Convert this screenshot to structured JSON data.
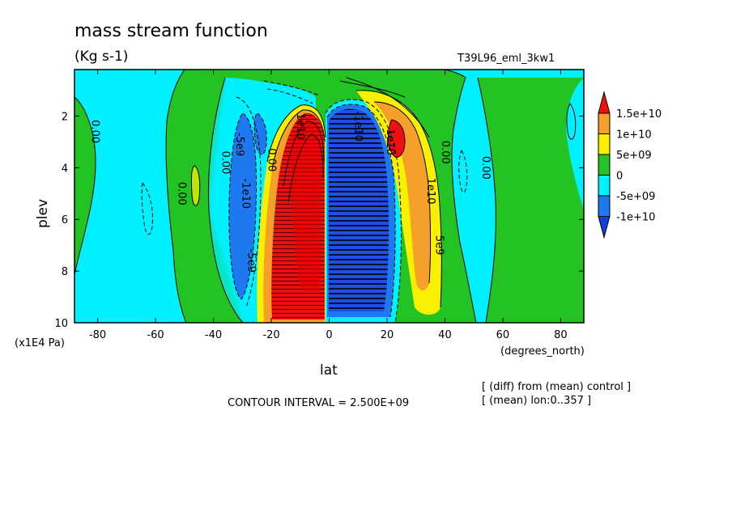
{
  "chart_data": {
    "type": "contour",
    "title": "mass stream function",
    "units": "(Kg s-1)",
    "experiment": "T39L96_eml_3kw1",
    "xlabel": "lat",
    "xunits": "(degrees_north)",
    "ylabel": "plev",
    "yunits": "(x1E4 Pa)",
    "xlim": [
      -88,
      88
    ],
    "ylim": [
      10,
      0.2
    ],
    "xticks": [
      "-80",
      "-60",
      "-40",
      "-20",
      "0",
      "20",
      "40",
      "60",
      "80"
    ],
    "xtick_values": [
      -80,
      -60,
      -40,
      -20,
      0,
      20,
      40,
      60,
      80
    ],
    "yticks": [
      "2",
      "4",
      "6",
      "8",
      "10"
    ],
    "ytick_values": [
      2,
      4,
      6,
      8,
      10
    ],
    "contour_interval_text": "CONTOUR INTERVAL = 2.500E+09",
    "notes": [
      "[ (diff) from (mean) control ]",
      "[ (mean) lon:0..357 ]"
    ],
    "colorbar": {
      "levels": [
        "1.5e+10",
        "1e+10",
        "5e+09",
        "0",
        "-5e+09",
        "-1e+10"
      ],
      "colors": [
        "#f01010",
        "#f5a02a",
        "#f8f000",
        "#22c322",
        "#00f0ff",
        "#1e78f0",
        "#1040d8"
      ]
    },
    "contour_labels": [
      {
        "text": "0.00",
        "lat": -82,
        "plev": 2.6
      },
      {
        "text": "0.00",
        "lat": -52,
        "plev": 5.0
      },
      {
        "text": "0.00",
        "lat": -37,
        "plev": 3.8
      },
      {
        "text": "-5e9",
        "lat": -32,
        "plev": 3.1
      },
      {
        "text": "-1e10",
        "lat": -30,
        "plev": 5.0
      },
      {
        "text": "-5e9",
        "lat": -28,
        "plev": 7.6
      },
      {
        "text": "0.00",
        "lat": -21,
        "plev": 3.7
      },
      {
        "text": "1e10",
        "lat": -11,
        "plev": 2.4
      },
      {
        "text": "-1e10",
        "lat": 9,
        "plev": 2.4
      },
      {
        "text": "1e10",
        "lat": 20,
        "plev": 3.0
      },
      {
        "text": "0.00",
        "lat": 39,
        "plev": 3.4
      },
      {
        "text": "1e10",
        "lat": 34,
        "plev": 4.9
      },
      {
        "text": "5e9",
        "lat": 37,
        "plev": 7.0
      },
      {
        "text": "0.00",
        "lat": 53,
        "plev": 4.0
      }
    ]
  }
}
